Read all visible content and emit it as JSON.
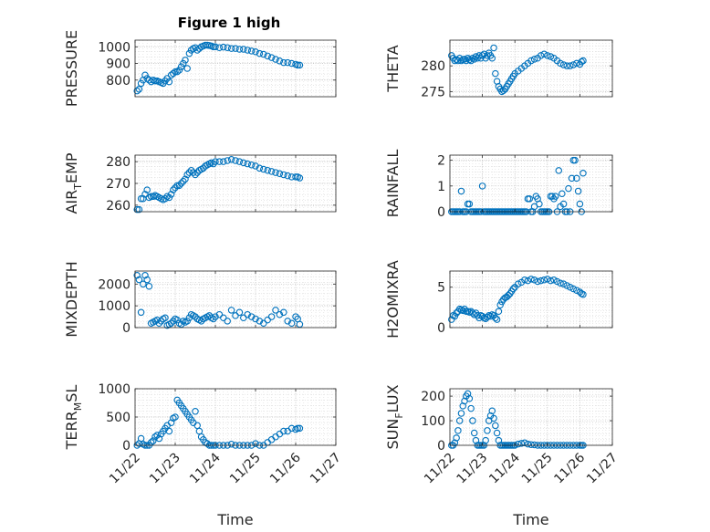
{
  "figure_title": "Figure 1 high",
  "colors": {
    "marker": "#0072BD",
    "axis": "#262626",
    "grid": "#bfbfbf"
  },
  "chart_data": [
    {
      "type": "scatter",
      "id": "pressure",
      "ylabel": "PRESSURE",
      "ylim": [
        700,
        1040
      ],
      "yticks": [
        800,
        900,
        1000
      ],
      "ytick_labels": [
        "800",
        "900",
        "1000"
      ],
      "xlim": [
        0,
        5
      ],
      "xticks": [
        0,
        1,
        2,
        3,
        4,
        5
      ],
      "xtick_labels": [],
      "x": [
        0.05,
        0.1,
        0.15,
        0.2,
        0.25,
        0.3,
        0.35,
        0.4,
        0.45,
        0.5,
        0.55,
        0.6,
        0.65,
        0.7,
        0.75,
        0.8,
        0.85,
        0.9,
        0.95,
        1.0,
        1.05,
        1.1,
        1.15,
        1.2,
        1.25,
        1.3,
        1.35,
        1.4,
        1.45,
        1.5,
        1.55,
        1.6,
        1.65,
        1.7,
        1.75,
        1.8,
        1.85,
        1.9,
        1.95,
        2.0,
        2.1,
        2.2,
        2.3,
        2.4,
        2.5,
        2.6,
        2.7,
        2.8,
        2.9,
        3.0,
        3.1,
        3.2,
        3.3,
        3.4,
        3.5,
        3.6,
        3.7,
        3.8,
        3.9,
        4.0,
        4.05,
        4.1
      ],
      "y": [
        735,
        745,
        780,
        800,
        830,
        810,
        800,
        790,
        800,
        795,
        795,
        790,
        785,
        780,
        795,
        810,
        790,
        830,
        840,
        850,
        850,
        860,
        880,
        900,
        920,
        870,
        960,
        980,
        990,
        995,
        980,
        990,
        1000,
        1005,
        1010,
        1010,
        1008,
        1005,
        1000,
        1000,
        995,
        998,
        995,
        990,
        990,
        985,
        985,
        980,
        975,
        970,
        960,
        955,
        945,
        935,
        925,
        915,
        905,
        905,
        900,
        895,
        890,
        890
      ]
    },
    {
      "type": "scatter",
      "id": "theta",
      "ylabel": "THETA",
      "ylim": [
        274,
        285
      ],
      "yticks": [
        275,
        280
      ],
      "ytick_labels": [
        "275",
        "280"
      ],
      "xlim": [
        0,
        5
      ],
      "xticks": [
        0,
        1,
        2,
        3,
        4,
        5
      ],
      "xtick_labels": [],
      "x": [
        0.05,
        0.1,
        0.15,
        0.2,
        0.25,
        0.3,
        0.35,
        0.4,
        0.45,
        0.5,
        0.55,
        0.6,
        0.65,
        0.7,
        0.75,
        0.8,
        0.85,
        0.9,
        0.95,
        1.0,
        1.05,
        1.1,
        1.15,
        1.2,
        1.25,
        1.3,
        1.35,
        1.4,
        1.45,
        1.5,
        1.55,
        1.6,
        1.65,
        1.7,
        1.75,
        1.8,
        1.85,
        1.9,
        1.95,
        2.0,
        2.1,
        2.2,
        2.3,
        2.4,
        2.5,
        2.6,
        2.7,
        2.8,
        2.9,
        3.0,
        3.1,
        3.2,
        3.3,
        3.4,
        3.5,
        3.6,
        3.7,
        3.8,
        3.9,
        4.0,
        4.05,
        4.1
      ],
      "y": [
        282,
        281.5,
        281,
        281.2,
        281,
        281.5,
        281,
        281.2,
        281.3,
        281,
        281.5,
        281.2,
        281,
        281.5,
        281.3,
        281.8,
        281.5,
        282,
        281.5,
        282,
        282.3,
        281.5,
        282,
        282.5,
        282,
        281.5,
        283.5,
        278.5,
        277,
        276,
        275.5,
        275,
        275.2,
        275.5,
        276,
        276.5,
        277,
        277.5,
        278,
        278.5,
        279,
        279.5,
        280,
        280.5,
        281,
        281.3,
        281.5,
        282,
        282.3,
        282,
        281.8,
        281.5,
        281,
        280.5,
        280.2,
        280,
        280,
        280.2,
        280.5,
        280.3,
        280.8,
        281
      ]
    },
    {
      "type": "scatter",
      "id": "air_temp",
      "ylabel": "AIR_TEMP",
      "ylim": [
        257,
        283
      ],
      "yticks": [
        260,
        270,
        280
      ],
      "ytick_labels": [
        "260",
        "270",
        "280"
      ],
      "xlim": [
        0,
        5
      ],
      "xticks": [
        0,
        1,
        2,
        3,
        4,
        5
      ],
      "xtick_labels": [],
      "x": [
        0.05,
        0.1,
        0.15,
        0.2,
        0.25,
        0.3,
        0.35,
        0.4,
        0.45,
        0.5,
        0.55,
        0.6,
        0.65,
        0.7,
        0.75,
        0.8,
        0.85,
        0.9,
        0.95,
        1.0,
        1.05,
        1.1,
        1.15,
        1.2,
        1.25,
        1.3,
        1.35,
        1.4,
        1.45,
        1.5,
        1.55,
        1.6,
        1.65,
        1.7,
        1.75,
        1.8,
        1.85,
        1.9,
        1.95,
        2.0,
        2.1,
        2.2,
        2.3,
        2.4,
        2.5,
        2.6,
        2.7,
        2.8,
        2.9,
        3.0,
        3.1,
        3.2,
        3.3,
        3.4,
        3.5,
        3.6,
        3.7,
        3.8,
        3.9,
        4.0,
        4.05,
        4.1
      ],
      "y": [
        258,
        258,
        263,
        263,
        265,
        267,
        263.5,
        264,
        264,
        264.5,
        264,
        263.5,
        263,
        262.5,
        263,
        264,
        263.5,
        265,
        267,
        268,
        269,
        269,
        270,
        271,
        272,
        274,
        275,
        276,
        275,
        274,
        275,
        276,
        276.5,
        277,
        278,
        278.5,
        279,
        279.5,
        279,
        280,
        280,
        280,
        280.5,
        281,
        280.5,
        280,
        279.5,
        279,
        278.5,
        278,
        277,
        276.5,
        276,
        275.5,
        275,
        274.5,
        274,
        273.5,
        273,
        273,
        273,
        272.5
      ]
    },
    {
      "type": "scatter",
      "id": "rainfall",
      "ylabel": "RAINFALL",
      "ylim": [
        0,
        2.2
      ],
      "yticks": [
        0,
        1,
        2
      ],
      "ytick_labels": [
        "0",
        "1",
        "2"
      ],
      "xlim": [
        0,
        5
      ],
      "xticks": [
        0,
        1,
        2,
        3,
        4,
        5
      ],
      "xtick_labels": [],
      "x": [
        0.05,
        0.1,
        0.15,
        0.2,
        0.25,
        0.3,
        0.35,
        0.4,
        0.45,
        0.5,
        0.55,
        0.6,
        0.65,
        0.7,
        0.75,
        0.8,
        0.85,
        0.9,
        0.95,
        1.0,
        1.05,
        1.1,
        1.15,
        1.2,
        1.25,
        1.3,
        1.35,
        1.4,
        1.45,
        1.5,
        1.55,
        1.6,
        1.65,
        1.7,
        1.75,
        1.8,
        1.85,
        1.9,
        1.95,
        2.0,
        2.05,
        2.1,
        2.15,
        2.2,
        2.25,
        2.3,
        2.35,
        2.4,
        2.45,
        2.5,
        2.55,
        2.6,
        2.65,
        2.7,
        2.75,
        2.8,
        2.85,
        2.9,
        2.95,
        3.0,
        3.05,
        3.1,
        3.15,
        3.2,
        3.25,
        3.3,
        3.35,
        3.4,
        3.45,
        3.5,
        3.55,
        3.6,
        3.65,
        3.7,
        3.75,
        3.8,
        3.85,
        3.9,
        3.95,
        4.0,
        4.05,
        4.1
      ],
      "y": [
        0,
        0,
        0,
        0,
        0,
        0,
        0.8,
        0,
        0,
        0,
        0.3,
        0.3,
        0,
        0,
        0,
        0,
        0,
        0,
        0,
        1.0,
        0,
        0,
        0,
        0,
        0,
        0,
        0,
        0,
        0,
        0,
        0,
        0,
        0,
        0,
        0,
        0,
        0,
        0,
        0,
        0,
        0,
        0,
        0,
        0,
        0,
        0,
        0,
        0.5,
        0.5,
        0,
        0,
        0.2,
        0.6,
        0.5,
        0.3,
        0,
        0,
        0,
        0,
        0,
        0,
        0.6,
        0.6,
        0.5,
        0.6,
        0,
        1.6,
        0.2,
        0.7,
        0.3,
        0,
        0,
        0.9,
        0,
        1.3,
        2.0,
        2.0,
        1.3,
        0.8,
        0.3,
        0,
        1.5
      ]
    },
    {
      "type": "scatter",
      "id": "mixdepth",
      "ylabel": "MIXDEPTH",
      "ylim": [
        0,
        2600
      ],
      "yticks": [
        0,
        1000,
        2000
      ],
      "ytick_labels": [
        "0",
        "1000",
        "2000"
      ],
      "xlim": [
        0,
        5
      ],
      "xticks": [
        0,
        1,
        2,
        3,
        4,
        5
      ],
      "xtick_labels": [],
      "x": [
        0.05,
        0.1,
        0.15,
        0.2,
        0.25,
        0.3,
        0.35,
        0.4,
        0.45,
        0.5,
        0.55,
        0.6,
        0.65,
        0.7,
        0.75,
        0.8,
        0.85,
        0.9,
        0.95,
        1.0,
        1.05,
        1.1,
        1.15,
        1.2,
        1.25,
        1.3,
        1.35,
        1.4,
        1.45,
        1.5,
        1.55,
        1.6,
        1.65,
        1.7,
        1.75,
        1.8,
        1.85,
        1.9,
        1.95,
        2.0,
        2.1,
        2.2,
        2.3,
        2.4,
        2.5,
        2.6,
        2.7,
        2.8,
        2.9,
        3.0,
        3.1,
        3.2,
        3.3,
        3.4,
        3.5,
        3.6,
        3.7,
        3.8,
        3.9,
        4.0,
        4.05,
        4.1
      ],
      "y": [
        2400,
        2200,
        700,
        2000,
        2400,
        2200,
        1900,
        200,
        250,
        300,
        350,
        200,
        300,
        400,
        450,
        100,
        150,
        200,
        300,
        400,
        350,
        200,
        150,
        300,
        250,
        300,
        450,
        600,
        550,
        500,
        400,
        350,
        300,
        400,
        450,
        500,
        550,
        450,
        400,
        500,
        600,
        450,
        300,
        800,
        550,
        700,
        450,
        600,
        500,
        400,
        300,
        200,
        350,
        500,
        800,
        600,
        700,
        300,
        200,
        500,
        400,
        150
      ]
    },
    {
      "type": "scatter",
      "id": "h2omixra",
      "ylabel": "H2OMIXRA",
      "ylim": [
        0,
        7
      ],
      "yticks": [
        0,
        5
      ],
      "ytick_labels": [
        "0",
        "5"
      ],
      "xlim": [
        0,
        5
      ],
      "xticks": [
        0,
        1,
        2,
        3,
        4,
        5
      ],
      "xtick_labels": [],
      "x": [
        0.05,
        0.1,
        0.15,
        0.2,
        0.25,
        0.3,
        0.35,
        0.4,
        0.45,
        0.5,
        0.55,
        0.6,
        0.65,
        0.7,
        0.75,
        0.8,
        0.85,
        0.9,
        0.95,
        1.0,
        1.05,
        1.1,
        1.15,
        1.2,
        1.25,
        1.3,
        1.35,
        1.4,
        1.45,
        1.5,
        1.55,
        1.6,
        1.65,
        1.7,
        1.75,
        1.8,
        1.85,
        1.9,
        1.95,
        2.0,
        2.1,
        2.2,
        2.3,
        2.4,
        2.5,
        2.6,
        2.7,
        2.8,
        2.9,
        3.0,
        3.1,
        3.2,
        3.3,
        3.4,
        3.5,
        3.6,
        3.7,
        3.8,
        3.9,
        4.0,
        4.05,
        4.1
      ],
      "y": [
        1.0,
        1.5,
        1.4,
        1.8,
        2.0,
        2.3,
        2.2,
        2.1,
        2.3,
        2.0,
        2.0,
        1.9,
        2.0,
        1.8,
        1.6,
        1.8,
        1.5,
        1.2,
        1.5,
        1.4,
        1.2,
        1.1,
        1.3,
        1.5,
        1.4,
        1.6,
        1.5,
        1.2,
        1.0,
        2.0,
        2.8,
        3.2,
        3.5,
        3.7,
        3.8,
        4.0,
        4.2,
        4.5,
        4.8,
        5.0,
        5.4,
        5.6,
        5.9,
        5.8,
        6.0,
        5.9,
        5.7,
        5.8,
        5.9,
        6.0,
        5.8,
        5.9,
        5.7,
        5.5,
        5.4,
        5.2,
        5.0,
        4.8,
        4.6,
        4.4,
        4.2,
        4.1
      ]
    },
    {
      "type": "scatter",
      "id": "terr_msl",
      "ylabel": "TERR_MSL",
      "ylim": [
        0,
        1000
      ],
      "yticks": [
        0,
        500,
        1000
      ],
      "ytick_labels": [
        "0",
        "500",
        "1000"
      ],
      "xlim": [
        0,
        5
      ],
      "xticks": [
        0,
        1,
        2,
        3,
        4,
        5
      ],
      "xtick_labels": [
        "11/22",
        "11/23",
        "11/24",
        "11/25",
        "11/26",
        "11/27"
      ],
      "xlabel": "Time",
      "x": [
        0.05,
        0.1,
        0.15,
        0.2,
        0.25,
        0.3,
        0.35,
        0.4,
        0.45,
        0.5,
        0.55,
        0.6,
        0.65,
        0.7,
        0.75,
        0.8,
        0.85,
        0.9,
        0.95,
        1.0,
        1.05,
        1.1,
        1.15,
        1.2,
        1.25,
        1.3,
        1.35,
        1.4,
        1.45,
        1.5,
        1.55,
        1.6,
        1.65,
        1.7,
        1.75,
        1.8,
        1.85,
        1.9,
        1.95,
        2.0,
        2.1,
        2.2,
        2.3,
        2.4,
        2.5,
        2.6,
        2.7,
        2.8,
        2.9,
        3.0,
        3.1,
        3.2,
        3.3,
        3.4,
        3.5,
        3.6,
        3.7,
        3.8,
        3.9,
        4.0,
        4.05,
        4.1
      ],
      "y": [
        0,
        30,
        120,
        20,
        0,
        0,
        0,
        50,
        80,
        150,
        180,
        120,
        200,
        250,
        300,
        350,
        250,
        400,
        480,
        500,
        800,
        750,
        700,
        650,
        600,
        550,
        500,
        450,
        400,
        600,
        350,
        250,
        150,
        100,
        50,
        30,
        0,
        0,
        0,
        0,
        0,
        0,
        0,
        20,
        0,
        0,
        0,
        0,
        0,
        30,
        0,
        0,
        50,
        100,
        150,
        200,
        250,
        250,
        300,
        280,
        300,
        300
      ]
    },
    {
      "type": "scatter",
      "id": "sun_flux",
      "ylabel": "SUN_FLUX",
      "ylim": [
        0,
        230
      ],
      "yticks": [
        0,
        100,
        200
      ],
      "ytick_labels": [
        "0",
        "100",
        "200"
      ],
      "xlim": [
        0,
        5
      ],
      "xticks": [
        0,
        1,
        2,
        3,
        4,
        5
      ],
      "xtick_labels": [
        "11/22",
        "11/23",
        "11/24",
        "11/25",
        "11/26",
        "11/27"
      ],
      "xlabel": "Time",
      "x": [
        0.05,
        0.1,
        0.15,
        0.2,
        0.25,
        0.3,
        0.35,
        0.4,
        0.45,
        0.5,
        0.55,
        0.6,
        0.65,
        0.7,
        0.75,
        0.8,
        0.85,
        0.9,
        0.95,
        1.0,
        1.05,
        1.1,
        1.15,
        1.2,
        1.25,
        1.3,
        1.35,
        1.4,
        1.45,
        1.5,
        1.55,
        1.6,
        1.65,
        1.7,
        1.75,
        1.8,
        1.85,
        1.9,
        1.95,
        2.0,
        2.1,
        2.2,
        2.3,
        2.4,
        2.5,
        2.6,
        2.7,
        2.8,
        2.9,
        3.0,
        3.1,
        3.2,
        3.3,
        3.4,
        3.5,
        3.6,
        3.7,
        3.8,
        3.9,
        4.0,
        4.05,
        4.1
      ],
      "y": [
        0,
        0,
        10,
        30,
        60,
        100,
        130,
        160,
        180,
        200,
        210,
        190,
        150,
        100,
        50,
        20,
        0,
        0,
        0,
        0,
        0,
        20,
        60,
        100,
        120,
        140,
        110,
        80,
        50,
        20,
        0,
        0,
        0,
        0,
        0,
        0,
        0,
        0,
        0,
        0,
        5,
        8,
        10,
        5,
        3,
        2,
        0,
        0,
        0,
        0,
        0,
        0,
        0,
        0,
        0,
        0,
        0,
        0,
        0,
        0,
        0,
        0
      ]
    }
  ]
}
